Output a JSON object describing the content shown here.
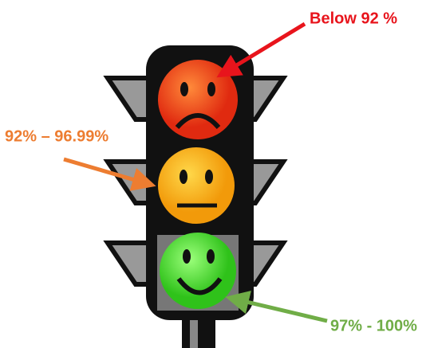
{
  "signals": [
    {
      "label": "Below 92 %"
    },
    {
      "label": "92% – 96.99%"
    },
    {
      "label": "97% - 100%"
    }
  ]
}
